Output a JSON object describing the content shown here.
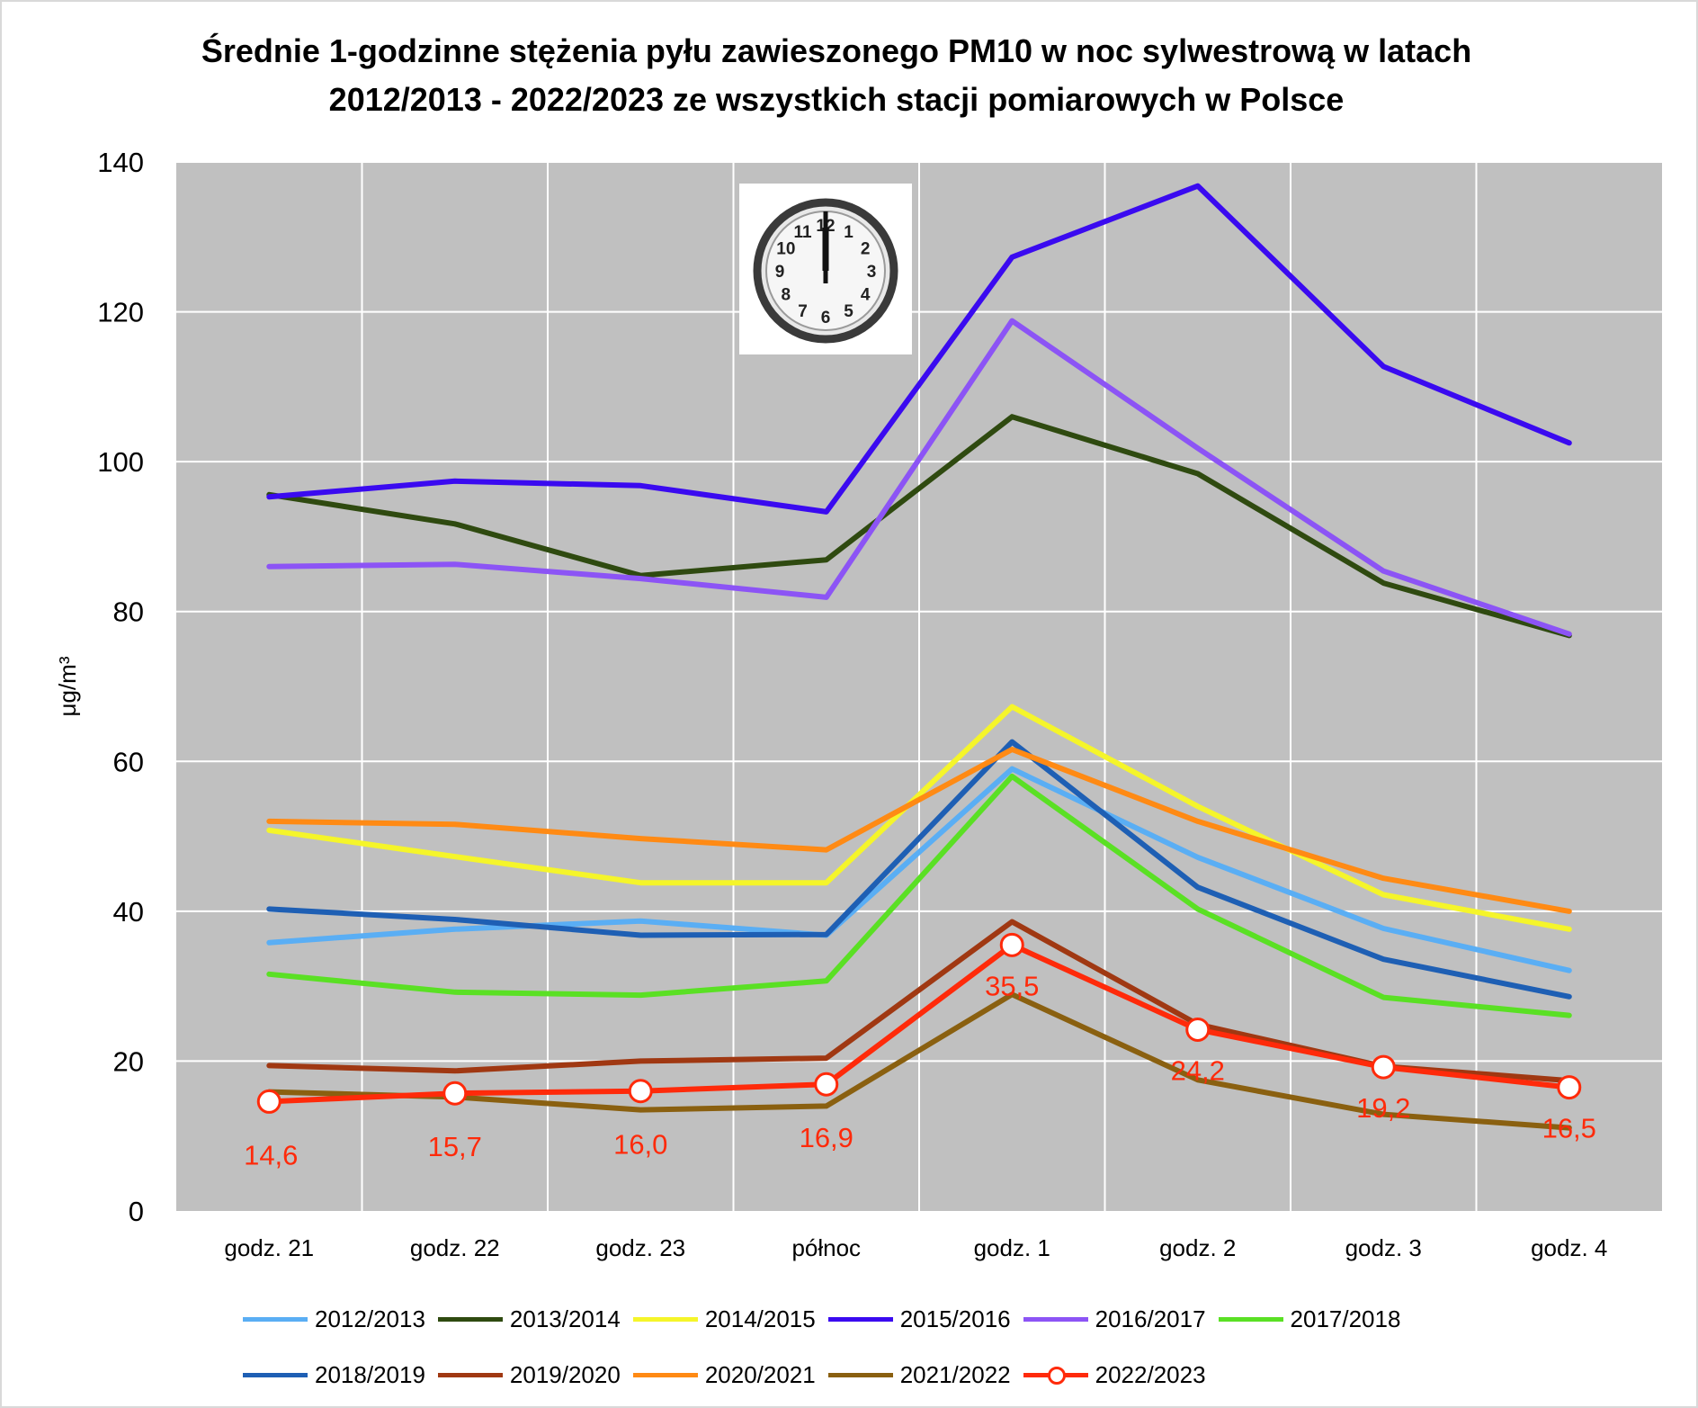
{
  "chart_data": {
    "type": "line",
    "title_lines": [
      "Średnie 1-godzinne stężenia pyłu zawieszonego PM10 w noc sylwestrową w latach",
      "2012/2013 - 2022/2023 ze wszystkich stacji pomiarowych w Polsce"
    ],
    "ylabel": "μg/m³",
    "ylim": [
      0,
      140
    ],
    "yticks": [
      "0",
      "20",
      "40",
      "60",
      "80",
      "100",
      "120",
      "140"
    ],
    "grid": true,
    "legend_position": "bottom",
    "categories": [
      "godz. 21",
      "godz. 22",
      "godz. 23",
      "północ",
      "godz. 1",
      "godz. 2",
      "godz. 3",
      "godz. 4"
    ],
    "series": [
      {
        "name": "2012/2013",
        "color": "#5aaef4",
        "values": [
          35.8,
          37.6,
          38.7,
          36.8,
          59.0,
          47.2,
          37.7,
          32.1
        ]
      },
      {
        "name": "2013/2014",
        "color": "#2f4a10",
        "values": [
          95.6,
          91.7,
          84.8,
          86.9,
          106.0,
          98.4,
          83.8,
          76.8
        ]
      },
      {
        "name": "2014/2015",
        "color": "#f5f52a",
        "values": [
          50.8,
          47.3,
          43.8,
          43.8,
          67.3,
          54.0,
          42.2,
          37.6
        ]
      },
      {
        "name": "2015/2016",
        "color": "#3a0af0",
        "values": [
          95.3,
          97.4,
          96.8,
          93.3,
          127.3,
          136.8,
          112.7,
          102.5
        ]
      },
      {
        "name": "2016/2017",
        "color": "#8c54f5",
        "values": [
          86.0,
          86.3,
          84.4,
          81.9,
          118.8,
          101.8,
          85.4,
          77.0
        ]
      },
      {
        "name": "2017/2018",
        "color": "#5ae024",
        "values": [
          31.6,
          29.2,
          28.8,
          30.7,
          58.0,
          40.3,
          28.5,
          26.1
        ]
      },
      {
        "name": "2018/2019",
        "color": "#1e5fb4",
        "values": [
          40.3,
          38.9,
          36.8,
          36.9,
          62.6,
          43.2,
          33.6,
          28.6
        ]
      },
      {
        "name": "2019/2020",
        "color": "#a03812",
        "values": [
          19.4,
          18.7,
          20.0,
          20.4,
          38.6,
          24.9,
          19.3,
          17.4
        ]
      },
      {
        "name": "2020/2021",
        "color": "#ff8a14",
        "values": [
          52.0,
          51.6,
          49.7,
          48.2,
          61.6,
          52.0,
          44.4,
          40.0
        ]
      },
      {
        "name": "2021/2022",
        "color": "#8a6010",
        "values": [
          15.9,
          15.2,
          13.5,
          14.0,
          28.9,
          17.5,
          12.9,
          11.1
        ]
      },
      {
        "name": "2022/2023",
        "color": "#ff2a0a",
        "markers": true,
        "values": [
          14.6,
          15.7,
          16.0,
          16.9,
          35.5,
          24.2,
          19.2,
          16.5
        ],
        "data_labels": [
          "14,6",
          "15,7",
          "16,0",
          "16,9",
          "35,5",
          "24,2",
          "19,2",
          "16,5"
        ]
      }
    ],
    "legend_rows": [
      [
        "2012/2013",
        "2013/2014",
        "2014/2015",
        "2015/2016",
        "2016/2017",
        "2017/2018"
      ],
      [
        "2018/2019",
        "2019/2020",
        "2020/2021",
        "2021/2022",
        "2022/2023"
      ]
    ],
    "image": "clock-icon showing 12:00"
  }
}
